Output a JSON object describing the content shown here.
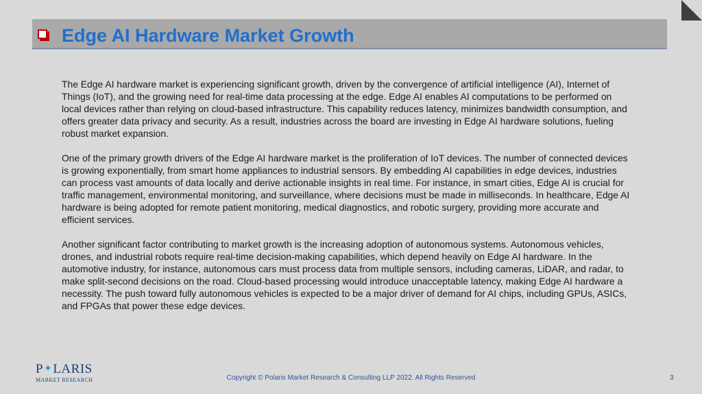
{
  "header": {
    "title": "Edge AI Hardware Market Growth",
    "bullet_icon": "checkbox-bullet-icon",
    "title_color": "#1f6fcb",
    "bar_color": "#a9a9a9",
    "bullet_color": "#c00000"
  },
  "body": {
    "paragraphs": [
      "The Edge AI hardware market is experiencing significant growth, driven by the convergence of artificial intelligence (AI), Internet of Things (IoT), and the growing need for real-time data processing at the edge. Edge AI enables AI computations to be performed on local devices rather than relying on cloud-based infrastructure. This capability reduces latency, minimizes bandwidth consumption, and offers greater data privacy and security. As a result, industries across the board are investing in Edge AI hardware solutions, fueling robust market expansion.",
      "One of the primary growth drivers of the Edge AI hardware market is the proliferation of IoT devices. The number of connected devices is growing exponentially, from smart home appliances to industrial sensors. By embedding AI capabilities in edge devices, industries can process vast amounts of data locally and derive actionable insights in real time. For instance, in smart cities, Edge AI is crucial for traffic management, environmental monitoring, and surveillance, where decisions must be made in milliseconds. In healthcare, Edge AI hardware is being adopted for remote patient monitoring, medical diagnostics, and robotic surgery, providing more accurate and efficient services.",
      "Another significant factor contributing to market growth is the increasing adoption of autonomous systems. Autonomous vehicles, drones, and industrial robots require real-time decision-making capabilities, which depend heavily on Edge AI hardware. In the automotive industry, for instance, autonomous cars must process data from multiple sensors, including cameras, LiDAR, and radar, to make split-second decisions on the road. Cloud-based processing would introduce unacceptable latency, making Edge AI hardware a necessity. The push toward fully autonomous vehicles is expected to be a major driver of demand for AI chips, including GPUs, ASICs, and FPGAs that power these edge devices."
    ]
  },
  "footer": {
    "logo": {
      "main_before": "P",
      "main_after": "LARIS",
      "star_icon": "star-icon",
      "sub": "MARKET RESEARCH",
      "color": "#1d3f73"
    },
    "copyright": "Copyright © Polaris Market Research & Consulting LLP 2022. All Rights Reserved",
    "page_number": "3"
  }
}
